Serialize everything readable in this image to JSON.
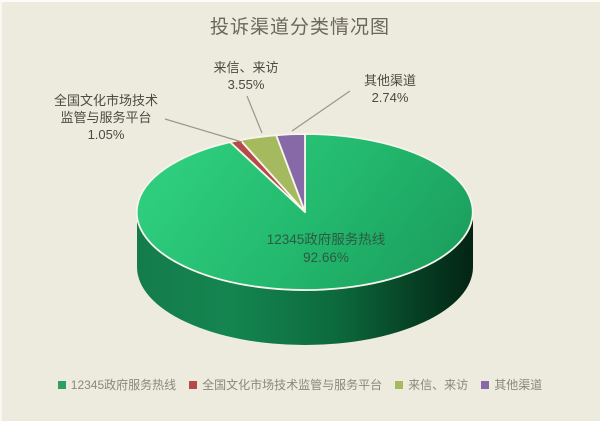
{
  "chart_data": {
    "type": "pie",
    "style": "3d",
    "title": "投诉渠道分类情况图",
    "legend_position": "bottom",
    "total": 100,
    "slices": [
      {
        "label": "12345政府服务热线",
        "value": 92.66,
        "pct_label": "92.66%",
        "color": "#2f9e62"
      },
      {
        "label": "全国文化市场技术监管与服务平台",
        "value": 1.05,
        "pct_label": "1.05%",
        "color": "#b64a4a"
      },
      {
        "label": "来信、来访",
        "value": 3.55,
        "pct_label": "3.55%",
        "color": "#a5b95e"
      },
      {
        "label": "其他渠道",
        "value": 2.74,
        "pct_label": "2.74%",
        "color": "#8669a6"
      }
    ],
    "callouts": {
      "main": "12345政府服务热线\n92.66%",
      "platform": "全国文化市场技术\n监管与服务平台\n1.05%",
      "letters": "来信、来访\n3.55%",
      "other": "其他渠道\n2.74%"
    },
    "colors": {
      "background": "#edebdd",
      "top_gradient": [
        "#2ecd7d",
        "#23b96e",
        "#1b9f5d"
      ],
      "side_gradient": [
        "#147c4b",
        "#158550",
        "#0c693c",
        "#063c22",
        "#032414"
      ],
      "slice_border": "#f7f5ec",
      "leader_line": "#9a968c",
      "title_text": "#6a675c",
      "label_text": "#4c4a42",
      "inner_label_text": "#2d5a43",
      "legend_text": "#8b887a"
    }
  }
}
